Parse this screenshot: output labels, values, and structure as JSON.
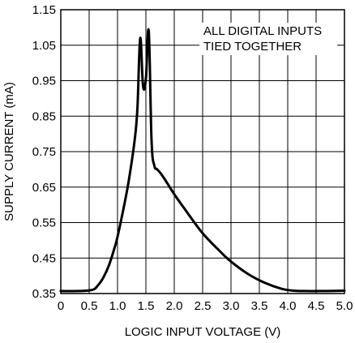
{
  "chart_data": {
    "type": "line",
    "xlabel": "LOGIC INPUT VOLTAGE (V)",
    "ylabel": "SUPPLY CURRENT (mA)",
    "xlim": [
      0,
      5.0
    ],
    "ylim": [
      0.35,
      1.15
    ],
    "grid": true,
    "x_ticks": [
      0,
      0.5,
      1.0,
      1.5,
      2.0,
      2.5,
      3.0,
      3.5,
      4.0,
      4.5,
      5.0
    ],
    "x_tick_labels": [
      "0",
      "0.5",
      "1.0",
      "1.5",
      "2.0",
      "2.5",
      "3.0",
      "3.5",
      "4.0",
      "4.5",
      "5.0"
    ],
    "y_ticks": [
      0.35,
      0.45,
      0.55,
      0.65,
      0.75,
      0.85,
      0.95,
      1.05,
      1.15
    ],
    "y_tick_labels": [
      "0.35",
      "0.45",
      "0.55",
      "0.65",
      "0.75",
      "0.85",
      "0.95",
      "1.05",
      "1.15"
    ],
    "annotation": [
      "ALL DIGITAL INPUTS",
      "TIED TOGETHER"
    ],
    "series": [
      {
        "color": "#000000",
        "x": [
          0,
          0.3,
          0.55,
          0.65,
          0.75,
          0.85,
          0.95,
          1.0,
          1.1,
          1.2,
          1.3,
          1.35,
          1.4,
          1.45,
          1.5,
          1.55,
          1.6,
          1.65,
          1.7,
          1.8,
          2.0,
          2.2,
          2.5,
          2.8,
          3.0,
          3.3,
          3.6,
          3.9,
          4.1,
          4.3,
          4.6,
          5.0
        ],
        "y": [
          0.357,
          0.357,
          0.36,
          0.372,
          0.395,
          0.43,
          0.48,
          0.51,
          0.585,
          0.67,
          0.78,
          0.87,
          1.07,
          0.935,
          0.955,
          1.09,
          0.78,
          0.71,
          0.7,
          0.68,
          0.63,
          0.585,
          0.52,
          0.47,
          0.44,
          0.405,
          0.38,
          0.363,
          0.358,
          0.357,
          0.357,
          0.358
        ]
      }
    ]
  }
}
